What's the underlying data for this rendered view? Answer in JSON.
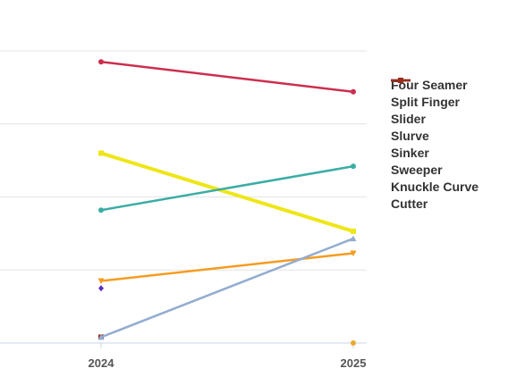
{
  "chart_data": {
    "type": "line",
    "x": [
      "2024",
      "2025"
    ],
    "ylim": [
      0,
      40
    ],
    "grid": true,
    "legend_position": "right",
    "series": [
      {
        "name": "Four Seamer",
        "color": "#cc2e4f",
        "marker": "circle",
        "width": 2.5,
        "values": [
          38.5,
          34.4
        ]
      },
      {
        "name": "Split Finger",
        "color": "#3aada5",
        "marker": "circle",
        "width": 2.5,
        "values": [
          18.2,
          24.2
        ]
      },
      {
        "name": "Slider",
        "color": "#eee617",
        "marker": "square",
        "width": 4,
        "values": [
          26.0,
          15.3
        ]
      },
      {
        "name": "Slurve",
        "color": "#93acd0",
        "marker": "triangle",
        "width": 2.5,
        "values": [
          0.8,
          14.3
        ]
      },
      {
        "name": "Sinker",
        "color": "#f59c1f",
        "marker": "triangle-down",
        "width": 2.5,
        "values": [
          8.5,
          12.3
        ]
      },
      {
        "name": "Sweeper",
        "color": "#e8a92b",
        "marker": "circle",
        "width": 2.5,
        "values": [
          null,
          0.0
        ]
      },
      {
        "name": "Knuckle Curve",
        "color": "#5a30c0",
        "marker": "diamond",
        "width": 2.5,
        "values": [
          7.5,
          null
        ]
      },
      {
        "name": "Cutter",
        "color": "#9a2e1c",
        "marker": "square",
        "width": 2.5,
        "values": [
          0.8,
          null
        ]
      }
    ]
  }
}
